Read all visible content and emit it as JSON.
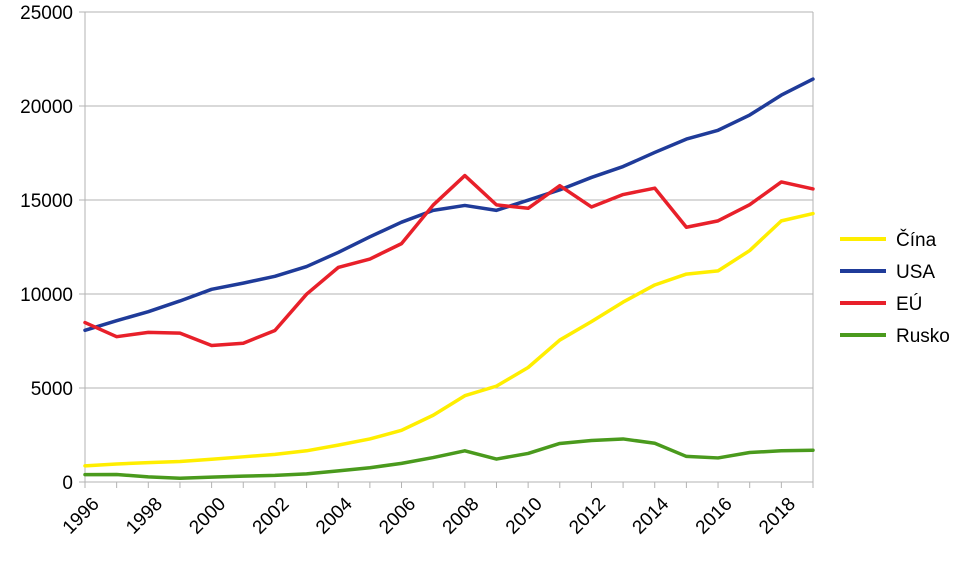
{
  "chart_data": {
    "type": "line",
    "title": "",
    "xlabel": "",
    "ylabel": "",
    "x": [
      1996,
      1997,
      1998,
      1999,
      2000,
      2001,
      2002,
      2003,
      2004,
      2005,
      2006,
      2007,
      2008,
      2009,
      2010,
      2011,
      2012,
      2013,
      2014,
      2015,
      2016,
      2017,
      2018,
      2019
    ],
    "x_tick_labels": [
      "1996",
      "1998",
      "2000",
      "2002",
      "2004",
      "2006",
      "2008",
      "2010",
      "2012",
      "2014",
      "2016",
      "2018"
    ],
    "y_tick_labels": [
      "0",
      "5000",
      "10000",
      "15000",
      "20000",
      "25000"
    ],
    "ylim": [
      0,
      25000
    ],
    "xlim": [
      1996,
      2019
    ],
    "grid": "horizontal",
    "legend_position": "right",
    "series": [
      {
        "name": "Čína",
        "color": "#ffee00",
        "values": [
          860,
          960,
          1030,
          1090,
          1210,
          1340,
          1470,
          1660,
          1960,
          2290,
          2750,
          3550,
          4590,
          5100,
          6090,
          7550,
          8530,
          9570,
          10480,
          11060,
          11230,
          12310,
          13890,
          14280
        ]
      },
      {
        "name": "USA",
        "color": "#1f3b99",
        "values": [
          8070,
          8580,
          9060,
          9630,
          10250,
          10580,
          10940,
          11460,
          12210,
          13040,
          13820,
          14450,
          14710,
          14450,
          14990,
          15540,
          16200,
          16780,
          17530,
          18240,
          18710,
          19520,
          20580,
          21430
        ]
      },
      {
        "name": "EÚ",
        "color": "#e8202a",
        "values": [
          8480,
          7730,
          7960,
          7920,
          7260,
          7380,
          8060,
          9990,
          11410,
          11860,
          12680,
          14730,
          16300,
          14740,
          14560,
          15760,
          14630,
          15290,
          15630,
          13550,
          13890,
          14750,
          15960,
          15590
        ]
      },
      {
        "name": "Rusko",
        "color": "#4a9a1d",
        "values": [
          390,
          400,
          270,
          200,
          260,
          310,
          350,
          430,
          590,
          760,
          990,
          1300,
          1660,
          1220,
          1520,
          2050,
          2210,
          2290,
          2060,
          1360,
          1280,
          1570,
          1660,
          1690
        ]
      }
    ]
  }
}
